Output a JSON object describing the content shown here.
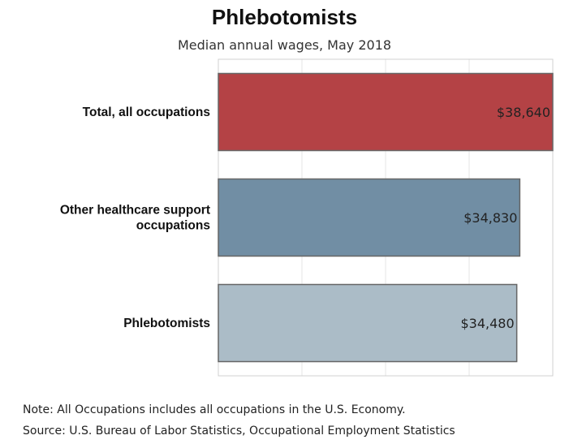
{
  "title": "Phlebotomists",
  "subtitle": "Median annual wages, May 2018",
  "notes": {
    "note": "Note: All Occupations includes all occupations in the U.S. Economy.",
    "source": "Source: U.S. Bureau of Labor Statistics, Occupational Employment Statistics"
  },
  "chart_data": {
    "type": "bar",
    "orientation": "horizontal",
    "title": "Phlebotomists",
    "subtitle": "Median annual wages, May 2018",
    "categories": [
      [
        "Total, all occupations"
      ],
      [
        "Other healthcare support",
        "occupations"
      ],
      [
        "Phlebotomists"
      ]
    ],
    "values": [
      38640,
      34830,
      34480
    ],
    "value_labels": [
      "$38,640",
      "$34,830",
      "$34,480"
    ],
    "colors": [
      "#b44245",
      "#718ea4",
      "#abbcc7"
    ],
    "xlim": [
      0,
      38640
    ],
    "grid": true,
    "legend": "none"
  }
}
